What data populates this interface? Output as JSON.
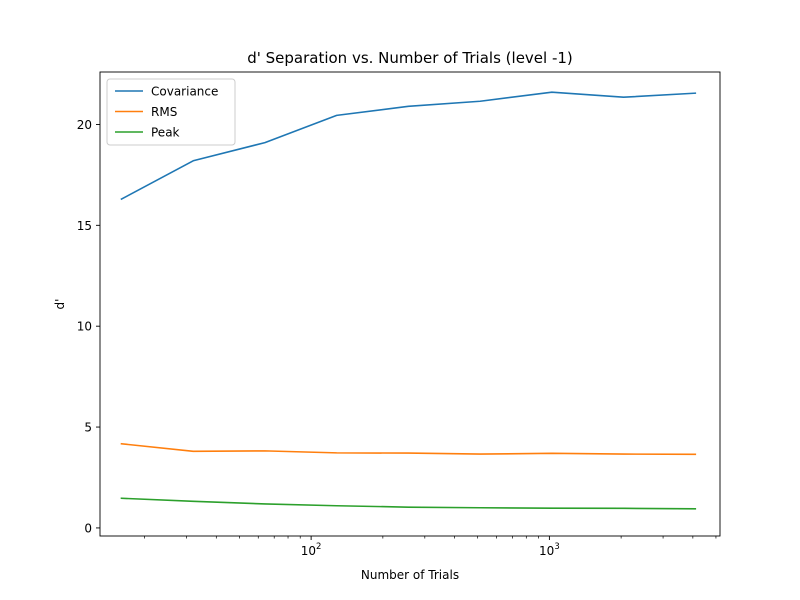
{
  "chart_data": {
    "type": "line",
    "title": "d' Separation vs. Number of Trials (level -1)",
    "xlabel": "Number of Trials",
    "ylabel": "d'",
    "xscale": "log",
    "xlim": [
      13,
      5200
    ],
    "ylim": [
      -0.4,
      22.6
    ],
    "xticks": [
      {
        "value": 100,
        "base": "10",
        "exp": "2"
      },
      {
        "value": 1000,
        "base": "10",
        "exp": "3"
      }
    ],
    "yticks": [
      0,
      5,
      10,
      15,
      20
    ],
    "grid": false,
    "legend_position": "upper-left",
    "x": [
      16,
      32,
      64,
      128,
      256,
      512,
      1024,
      2048,
      4096
    ],
    "series": [
      {
        "name": "Covariance",
        "color": "#1f77b4",
        "values": [
          16.3,
          18.2,
          19.1,
          20.45,
          20.9,
          21.15,
          21.6,
          21.35,
          21.55
        ]
      },
      {
        "name": "RMS",
        "color": "#ff7f0e",
        "values": [
          4.17,
          3.8,
          3.82,
          3.72,
          3.71,
          3.66,
          3.7,
          3.66,
          3.65
        ]
      },
      {
        "name": "Peak",
        "color": "#2ca02c",
        "values": [
          1.47,
          1.32,
          1.19,
          1.1,
          1.03,
          1.0,
          0.98,
          0.97,
          0.95
        ]
      }
    ]
  }
}
